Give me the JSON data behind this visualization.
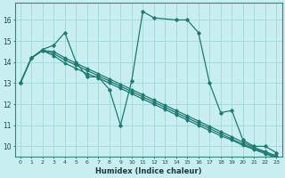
{
  "xlabel": "Humidex (Indice chaleur)",
  "background_color": "#c8eef0",
  "grid_color": "#a0d8dc",
  "line_color": "#1e7a72",
  "xlim": [
    -0.5,
    23.5
  ],
  "ylim": [
    9.5,
    16.8
  ],
  "yticks": [
    10,
    11,
    12,
    13,
    14,
    15,
    16
  ],
  "xticks": [
    0,
    1,
    2,
    3,
    4,
    5,
    6,
    7,
    8,
    9,
    10,
    11,
    12,
    13,
    14,
    15,
    16,
    17,
    18,
    19,
    20,
    21,
    22,
    23
  ],
  "series": [
    {
      "x": [
        0,
        1,
        2,
        3,
        4,
        5,
        6,
        7,
        8,
        9,
        10,
        11,
        12,
        14,
        15,
        16,
        17,
        18,
        19,
        20,
        21,
        22,
        23
      ],
      "y": [
        13.0,
        14.2,
        14.6,
        14.8,
        15.4,
        14.0,
        13.3,
        13.3,
        12.7,
        11.0,
        13.1,
        16.4,
        16.1,
        16.0,
        16.0,
        15.4,
        13.0,
        11.6,
        11.7,
        10.3,
        10.0,
        10.0,
        9.7
      ]
    },
    {
      "x": [
        0,
        1,
        2,
        3,
        4,
        5,
        6,
        7,
        8,
        9,
        10,
        11,
        12,
        13,
        14,
        15,
        16,
        17,
        18,
        19,
        20,
        21,
        22,
        23
      ],
      "y": [
        13.0,
        14.2,
        14.55,
        14.3,
        13.95,
        13.7,
        13.45,
        13.25,
        13.0,
        12.75,
        12.5,
        12.25,
        12.0,
        11.75,
        11.5,
        11.25,
        11.0,
        10.75,
        10.5,
        10.3,
        10.05,
        9.85,
        9.65,
        9.45
      ]
    },
    {
      "x": [
        0,
        1,
        2,
        3,
        4,
        5,
        6,
        7,
        8,
        9,
        10,
        11,
        12,
        13,
        14,
        15,
        16,
        17,
        18,
        19,
        20,
        21,
        22,
        23
      ],
      "y": [
        13.0,
        14.2,
        14.55,
        14.4,
        14.1,
        13.85,
        13.6,
        13.35,
        13.1,
        12.85,
        12.6,
        12.35,
        12.1,
        11.85,
        11.6,
        11.35,
        11.1,
        10.85,
        10.6,
        10.35,
        10.1,
        9.9,
        9.7,
        9.5
      ]
    },
    {
      "x": [
        0,
        1,
        2,
        3,
        4,
        5,
        6,
        7,
        8,
        9,
        10,
        11,
        12,
        13,
        14,
        15,
        16,
        17,
        18,
        19,
        20,
        21,
        22,
        23
      ],
      "y": [
        13.0,
        14.2,
        14.55,
        14.5,
        14.2,
        13.95,
        13.7,
        13.45,
        13.2,
        12.95,
        12.7,
        12.45,
        12.2,
        11.95,
        11.7,
        11.45,
        11.2,
        10.95,
        10.7,
        10.45,
        10.2,
        9.95,
        9.75,
        9.55
      ]
    }
  ]
}
